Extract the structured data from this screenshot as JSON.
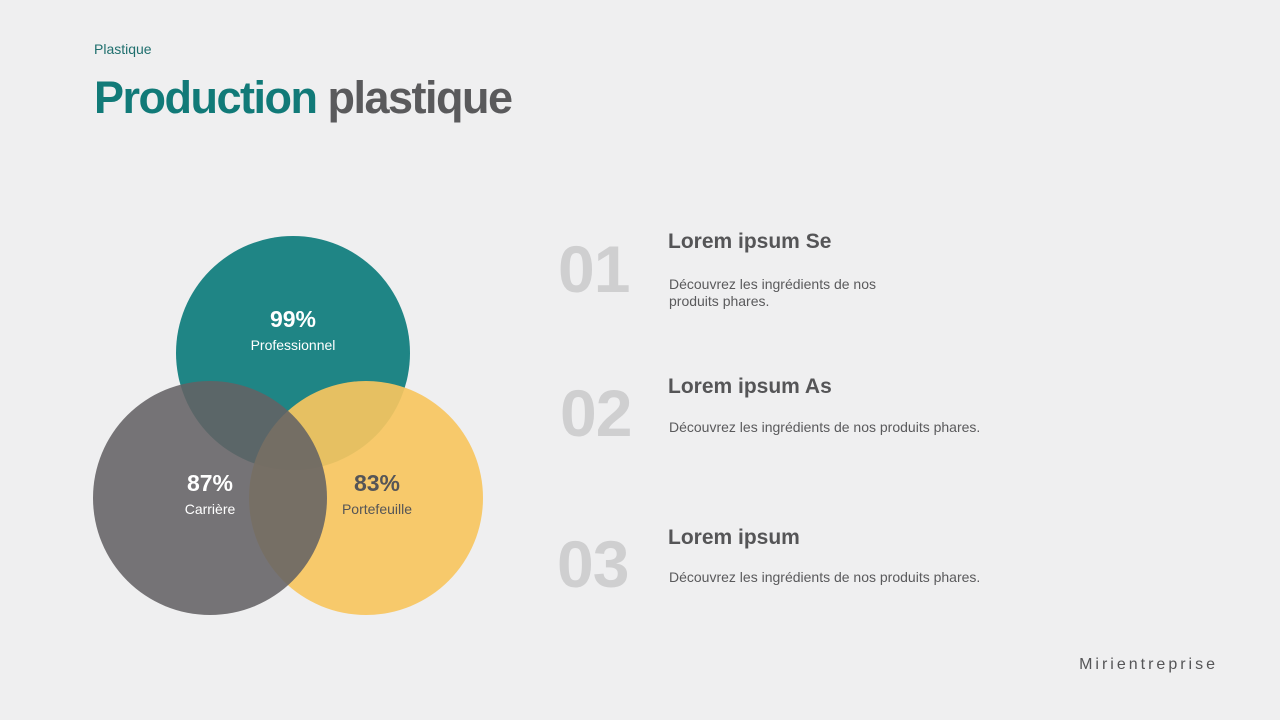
{
  "header": {
    "eyebrow": "Plastique",
    "title_accent": "Production",
    "title_rest": "plastique"
  },
  "venn": [
    {
      "value": "99%",
      "label": "Professionnel",
      "color": "#1f8585"
    },
    {
      "value": "87%",
      "label": "Carrière",
      "color": "#646264"
    },
    {
      "value": "83%",
      "label": "Portefeuille",
      "color": "#f7c55f"
    }
  ],
  "items": [
    {
      "number": "01",
      "title": "Lorem ipsum Se",
      "description": "Découvrez les ingrédients de nos produits phares."
    },
    {
      "number": "02",
      "title": "Lorem ipsum As",
      "description": "Découvrez les ingrédients de nos produits phares."
    },
    {
      "number": "03",
      "title": "Lorem ipsum",
      "description": "Découvrez les ingrédients de nos produits phares."
    }
  ],
  "footer": {
    "brand": "Mirientreprise"
  }
}
